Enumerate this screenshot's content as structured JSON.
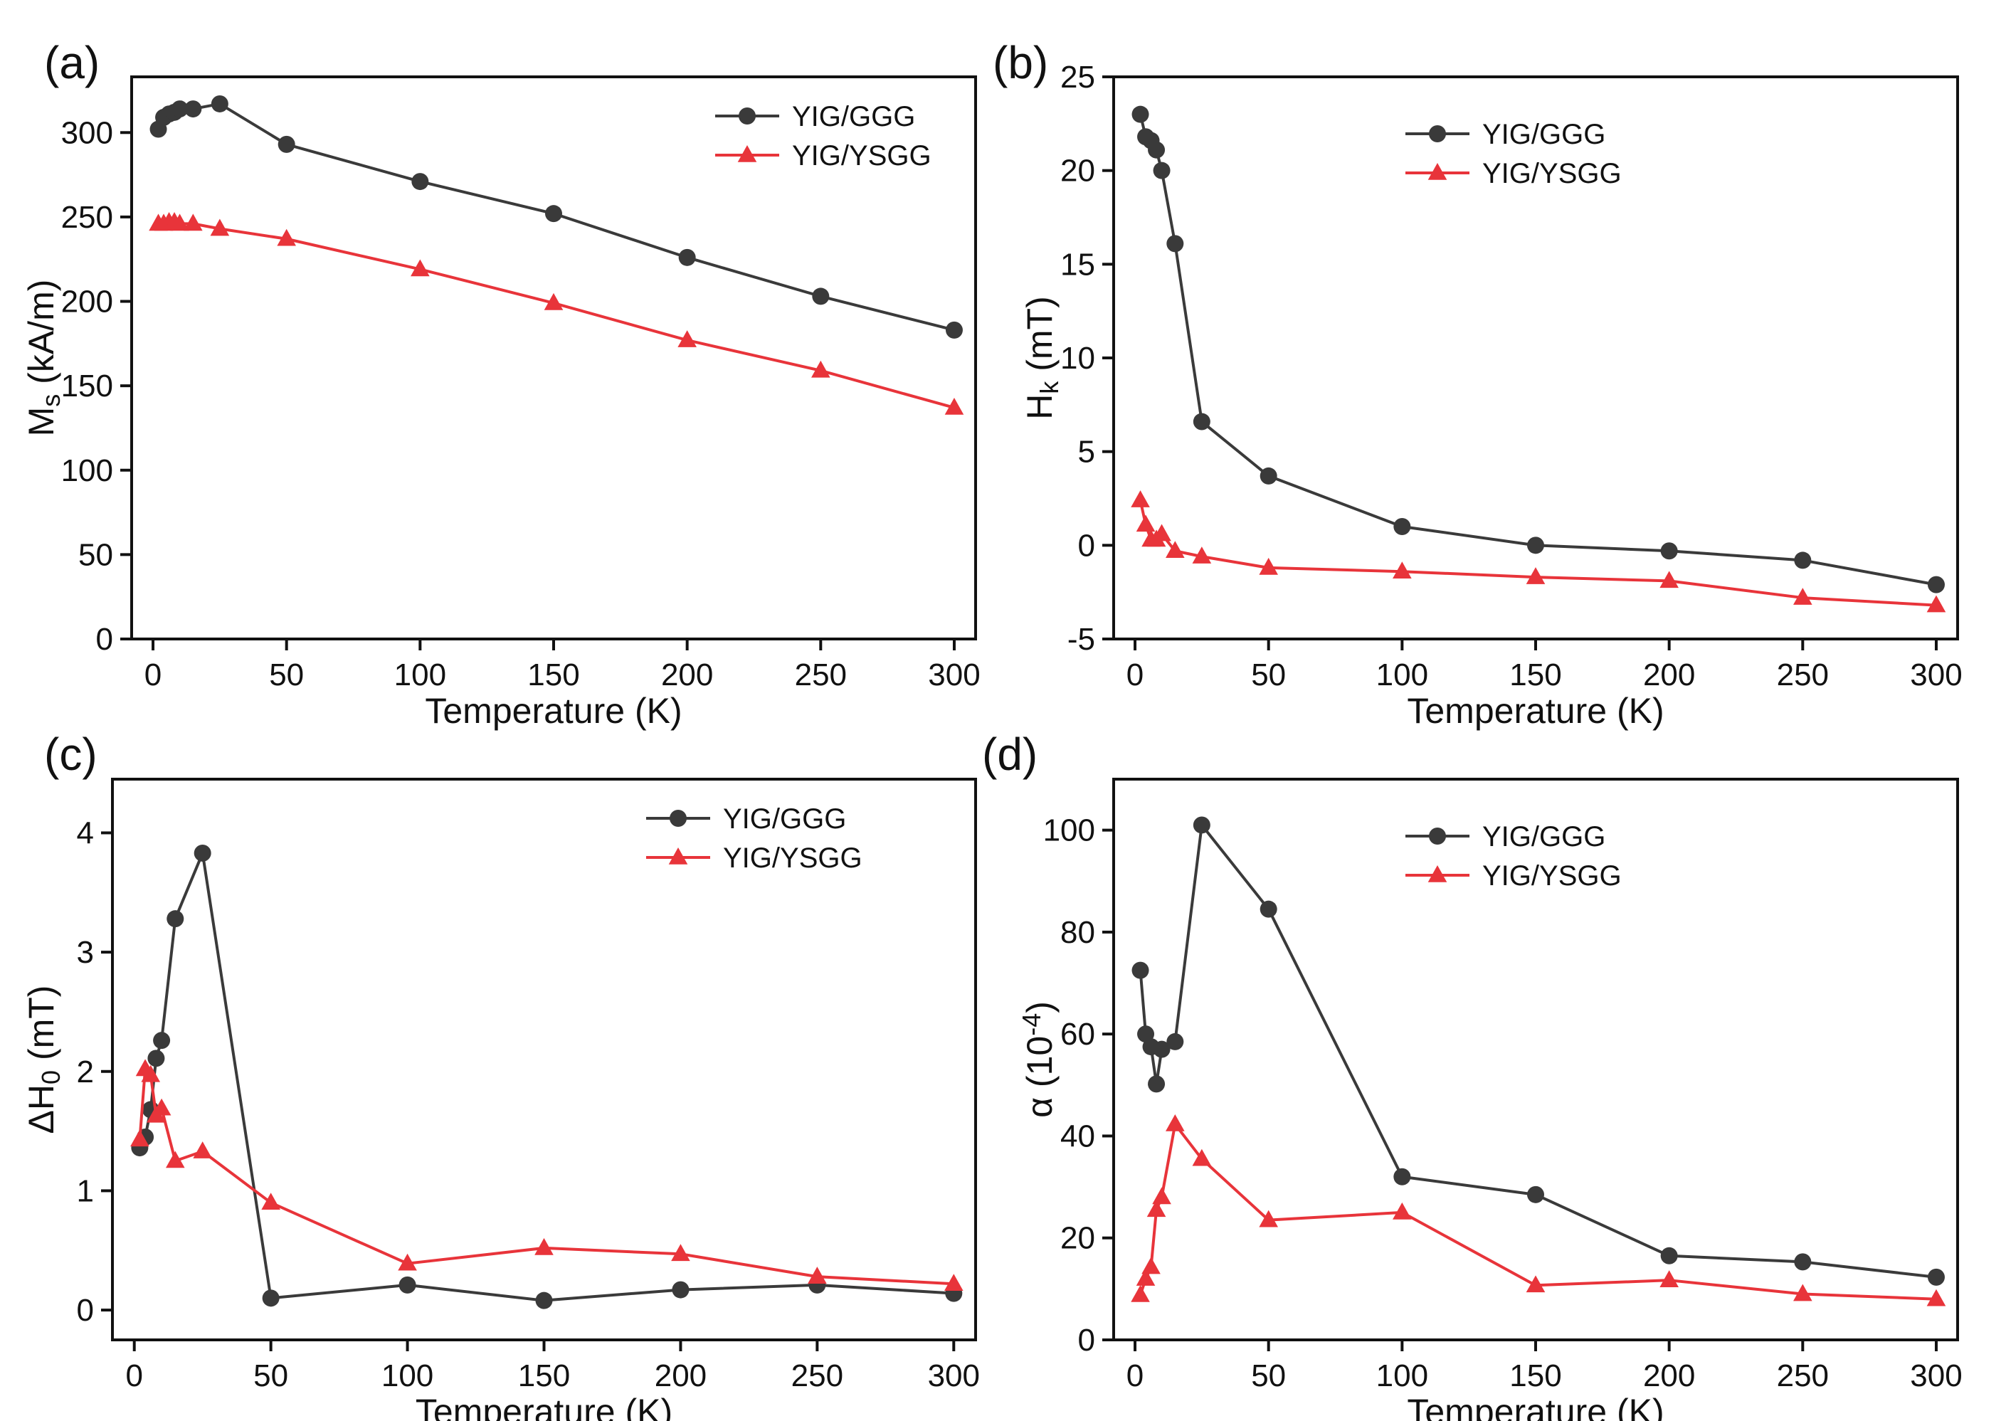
{
  "chart_data": [
    {
      "type": "line",
      "panel_label": "(a)",
      "xlabel": "Temperature (K)",
      "ylabel": "M|s| (kA/m)",
      "xlim": [
        -8,
        308
      ],
      "ylim": [
        0,
        333
      ],
      "xticks": [
        0,
        50,
        100,
        150,
        200,
        250,
        300
      ],
      "yticks": [
        0,
        50,
        100,
        150,
        200,
        250,
        300
      ],
      "legend": "top-right",
      "series": [
        {
          "name": "YIG/GGG",
          "color": "#3a3a3a",
          "marker": "circle",
          "x": [
            2,
            4,
            6,
            8,
            10,
            15,
            25,
            50,
            100,
            150,
            200,
            250,
            300
          ],
          "y": [
            302,
            309,
            311,
            312,
            314,
            314,
            317,
            293,
            271,
            252,
            226,
            203,
            183
          ]
        },
        {
          "name": "YIG/YSGG",
          "color": "#e8343a",
          "marker": "triangle",
          "x": [
            2,
            4,
            6,
            8,
            10,
            15,
            25,
            50,
            100,
            150,
            200,
            250,
            300
          ],
          "y": [
            246,
            246,
            247,
            247,
            246,
            246,
            243,
            237,
            219,
            199,
            177,
            159,
            137
          ]
        }
      ]
    },
    {
      "type": "line",
      "panel_label": "(b)",
      "xlabel": "Temperature (K)",
      "ylabel": "H|k| (mT)",
      "xlim": [
        -8,
        308
      ],
      "ylim": [
        -5,
        25
      ],
      "xticks": [
        0,
        50,
        100,
        150,
        200,
        250,
        300
      ],
      "yticks": [
        -5,
        0,
        5,
        10,
        15,
        20,
        25
      ],
      "legend": "top-right",
      "series": [
        {
          "name": "YIG/GGG",
          "color": "#3a3a3a",
          "marker": "circle",
          "x": [
            2,
            4,
            6,
            8,
            10,
            15,
            25,
            50,
            100,
            150,
            200,
            250,
            300
          ],
          "y": [
            23.0,
            21.8,
            21.6,
            21.1,
            20.0,
            16.1,
            6.6,
            3.7,
            1.0,
            0.0,
            -0.3,
            -0.8,
            -2.1
          ]
        },
        {
          "name": "YIG/YSGG",
          "color": "#e8343a",
          "marker": "triangle",
          "x": [
            2,
            4,
            6,
            8,
            10,
            15,
            25,
            50,
            100,
            150,
            200,
            250,
            300
          ],
          "y": [
            2.4,
            1.1,
            0.3,
            0.3,
            0.6,
            -0.3,
            -0.6,
            -1.2,
            -1.4,
            -1.7,
            -1.9,
            -2.8,
            -3.2
          ]
        }
      ]
    },
    {
      "type": "line",
      "panel_label": "(c)",
      "xlabel": "Temperature (K)",
      "ylabel": "ΔH|0| (mT)",
      "xlim": [
        -8,
        308
      ],
      "ylim": [
        -0.25,
        4.45
      ],
      "xticks": [
        0,
        50,
        100,
        150,
        200,
        250,
        300
      ],
      "yticks": [
        0,
        1,
        2,
        3,
        4
      ],
      "legend": "top-right",
      "series": [
        {
          "name": "YIG/GGG",
          "color": "#3a3a3a",
          "marker": "circle",
          "x": [
            2,
            4,
            6,
            8,
            10,
            15,
            25,
            50,
            100,
            150,
            200,
            250,
            300
          ],
          "y": [
            1.36,
            1.45,
            1.68,
            2.11,
            2.26,
            3.28,
            3.83,
            0.1,
            0.21,
            0.08,
            0.17,
            0.21,
            0.14
          ]
        },
        {
          "name": "YIG/YSGG",
          "color": "#e8343a",
          "marker": "triangle",
          "x": [
            2,
            4,
            6,
            8,
            10,
            15,
            25,
            50,
            100,
            150,
            200,
            250,
            300
          ],
          "y": [
            1.43,
            2.02,
            1.97,
            1.63,
            1.69,
            1.25,
            1.33,
            0.9,
            0.39,
            0.52,
            0.47,
            0.28,
            0.22
          ]
        }
      ]
    },
    {
      "type": "line",
      "panel_label": "(d)",
      "xlabel": "Temperature (K)",
      "ylabel": "α (10|-4|)",
      "xlim": [
        -8,
        308
      ],
      "ylim": [
        0,
        110
      ],
      "xticks": [
        0,
        50,
        100,
        150,
        200,
        250,
        300
      ],
      "yticks": [
        0,
        20,
        40,
        60,
        80,
        100
      ],
      "legend": "top-right",
      "series": [
        {
          "name": "YIG/GGG",
          "color": "#3a3a3a",
          "marker": "circle",
          "x": [
            2,
            4,
            6,
            8,
            10,
            15,
            25,
            50,
            100,
            150,
            200,
            250,
            300
          ],
          "y": [
            72.5,
            60,
            57.5,
            50.2,
            57,
            58.5,
            101,
            84.5,
            32,
            28.5,
            16.5,
            15.3,
            12.3
          ]
        },
        {
          "name": "YIG/YSGG",
          "color": "#e8343a",
          "marker": "triangle",
          "x": [
            2,
            4,
            6,
            8,
            10,
            15,
            25,
            50,
            100,
            150,
            200,
            250,
            300
          ],
          "y": [
            8.8,
            12,
            14.3,
            25.5,
            28,
            42.3,
            35.5,
            23.5,
            25,
            10.7,
            11.7,
            9,
            8
          ]
        }
      ]
    }
  ]
}
